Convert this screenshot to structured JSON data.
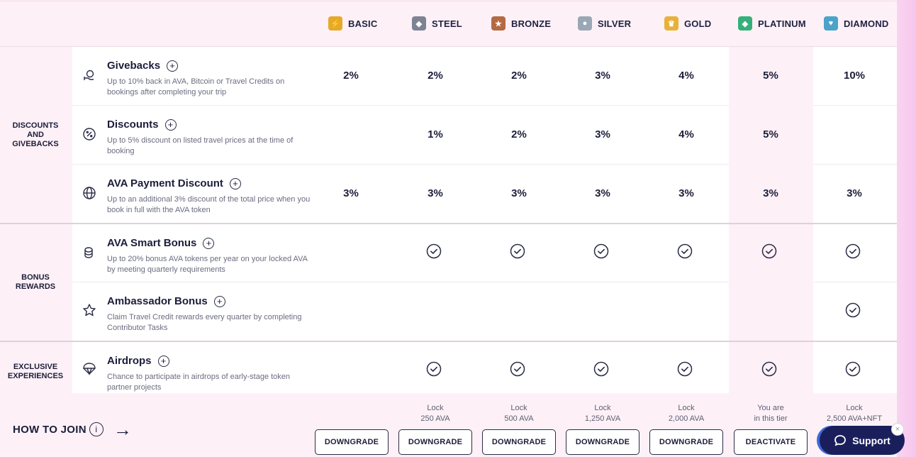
{
  "tiers": [
    {
      "name": "BASIC",
      "color": "#e7a92a",
      "glyph": "⚡"
    },
    {
      "name": "STEEL",
      "color": "#7d8392",
      "glyph": "◆"
    },
    {
      "name": "BRONZE",
      "color": "#b56a43",
      "glyph": "★"
    },
    {
      "name": "SILVER",
      "color": "#9aa8b6",
      "glyph": "●"
    },
    {
      "name": "GOLD",
      "color": "#e7b239",
      "glyph": "♛"
    },
    {
      "name": "PLATINUM",
      "color": "#35b07a",
      "glyph": "◆"
    },
    {
      "name": "DIAMOND",
      "color": "#4aa3c9",
      "glyph": "♥"
    }
  ],
  "groups": [
    {
      "label_1": "DISCOUNTS",
      "label_2": "AND",
      "label_3": "GIVEBACKS"
    },
    {
      "label_1": "BONUS",
      "label_2": "REWARDS"
    },
    {
      "label_1": "EXCLUSIVE",
      "label_2": "EXPERIENCES"
    }
  ],
  "features": [
    {
      "title": "Givebacks",
      "icon": "hand-coin-icon",
      "desc": "Up to 10% back in AVA, Bitcoin or Travel Credits on bookings after completing your trip",
      "values": [
        "2%",
        "2%",
        "2%",
        "3%",
        "4%",
        "5%",
        "10%"
      ]
    },
    {
      "title": "Discounts",
      "icon": "percent-icon",
      "desc": "Up to 5% discount on listed travel prices at the time of booking",
      "values": [
        "",
        "1%",
        "2%",
        "3%",
        "4%",
        "5%",
        ""
      ]
    },
    {
      "title": "AVA Payment Discount",
      "icon": "globe-icon",
      "desc": "Up to an additional 3% discount of the total price when you book in full with the AVA token",
      "values": [
        "3%",
        "3%",
        "3%",
        "3%",
        "3%",
        "3%",
        "3%"
      ]
    },
    {
      "title": "AVA Smart Bonus",
      "icon": "coins-icon",
      "desc": "Up to 20% bonus AVA tokens per year on your locked AVA by meeting quarterly requirements",
      "checks": [
        false,
        true,
        true,
        true,
        true,
        true,
        true
      ]
    },
    {
      "title": "Ambassador Bonus",
      "icon": "star-icon",
      "desc": "Claim Travel Credit rewards every quarter by completing Contributor Tasks",
      "checks": [
        false,
        false,
        false,
        false,
        false,
        false,
        true
      ]
    },
    {
      "title": "Airdrops",
      "icon": "parachute-icon",
      "desc": "Chance to participate in airdrops of early-stage token partner projects",
      "checks": [
        false,
        true,
        true,
        true,
        true,
        true,
        true
      ]
    }
  ],
  "join": {
    "label": "HOW TO JOIN"
  },
  "requirements": [
    {
      "line1": "",
      "line2": ""
    },
    {
      "line1": "Lock",
      "line2": "250 AVA"
    },
    {
      "line1": "Lock",
      "line2": "500 AVA"
    },
    {
      "line1": "Lock",
      "line2": "1,250 AVA"
    },
    {
      "line1": "Lock",
      "line2": "2,000 AVA"
    },
    {
      "line1": "You are",
      "line2": "in this tier"
    },
    {
      "line1": "Lock",
      "line2": "2,500 AVA+NFT"
    }
  ],
  "actions": [
    "DOWNGRADE",
    "DOWNGRADE",
    "DOWNGRADE",
    "DOWNGRADE",
    "DOWNGRADE",
    "DEACTIVATE"
  ],
  "support": {
    "label": "Support",
    "close": "×"
  }
}
